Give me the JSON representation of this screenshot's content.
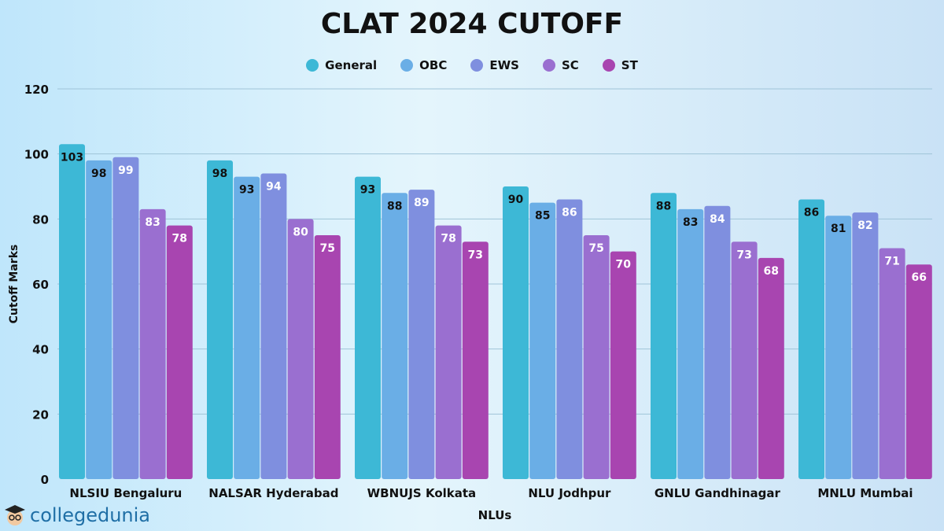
{
  "chart_data": {
    "type": "bar",
    "title": "CLAT 2024 CUTOFF",
    "xlabel": "NLUs",
    "ylabel": "Cutoff Marks",
    "ylim": [
      0,
      120
    ],
    "yticks": [
      0,
      20,
      40,
      60,
      80,
      100,
      120
    ],
    "grid": true,
    "legend_position": "top",
    "categories": [
      "NLSIU Bengaluru",
      "NALSAR Hyderabad",
      "WBNUJS Kolkata",
      "NLU Jodhpur",
      "GNLU Gandhinagar",
      "MNLU Mumbai"
    ],
    "series": [
      {
        "name": "General",
        "color": "#3db8d6",
        "label_color": "#111111",
        "values": [
          103,
          98,
          93,
          90,
          88,
          86
        ]
      },
      {
        "name": "OBC",
        "color": "#6aaee6",
        "label_color": "#111111",
        "values": [
          98,
          93,
          88,
          85,
          83,
          81
        ]
      },
      {
        "name": "EWS",
        "color": "#7f8fdf",
        "label_color": "#ffffff",
        "values": [
          99,
          94,
          89,
          86,
          84,
          82
        ]
      },
      {
        "name": "SC",
        "color": "#9a6fd0",
        "label_color": "#ffffff",
        "values": [
          83,
          80,
          78,
          75,
          73,
          71
        ]
      },
      {
        "name": "ST",
        "color": "#a845b0",
        "label_color": "#ffffff",
        "values": [
          78,
          75,
          73,
          70,
          68,
          66
        ]
      }
    ]
  },
  "logo": {
    "text": "collegedunia",
    "icon": "graduate-mascot-icon"
  }
}
